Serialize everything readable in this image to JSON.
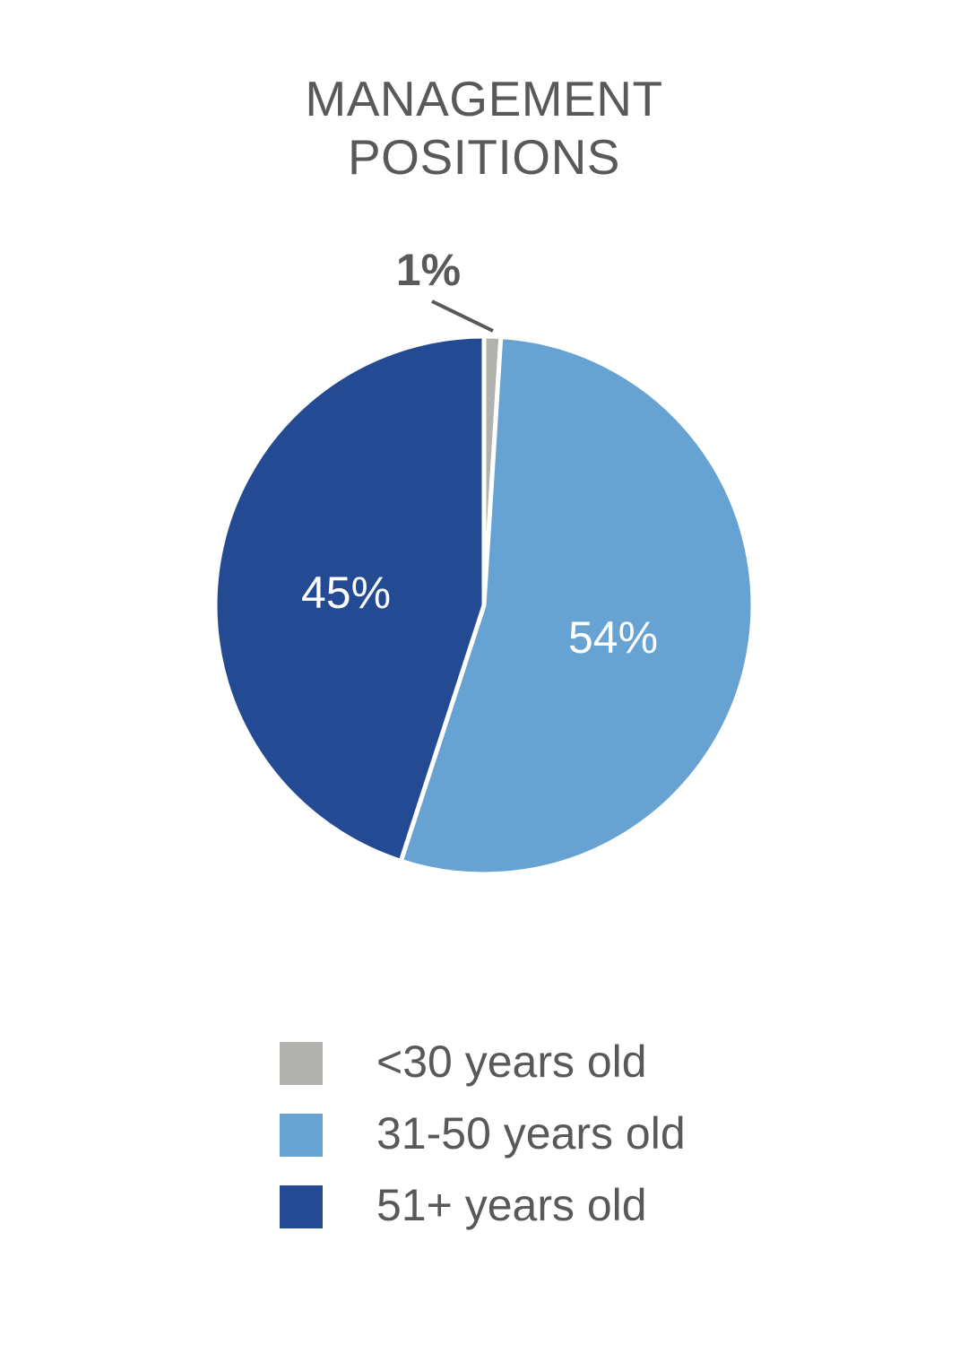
{
  "title_lines": [
    "MANAGEMENT",
    "POSITIONS"
  ],
  "chart_data": {
    "type": "pie",
    "title": "MANAGEMENT POSITIONS",
    "categories": [
      "<30 years old",
      "31-50 years old",
      "51+ years old"
    ],
    "values": [
      1,
      54,
      45
    ],
    "labels": [
      "1%",
      "54%",
      "45%"
    ],
    "colors": [
      "#b1b2ad",
      "#66a2d2",
      "#234a93"
    ],
    "label_colors": [
      "#58595b",
      "#ffffff",
      "#ffffff"
    ],
    "start_angle_deg": 0,
    "direction": "clockwise",
    "legend_placement": "bottom"
  }
}
